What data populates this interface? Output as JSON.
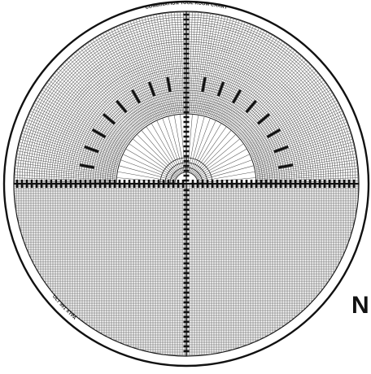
{
  "chart": {
    "title": "COMBINATION TOOL ROOM CHART",
    "code": "OLT 991 XYPA",
    "corner_text": "N",
    "colors": {
      "ink": "#111111",
      "grid": "#555555",
      "paper": "#ffffff"
    }
  }
}
